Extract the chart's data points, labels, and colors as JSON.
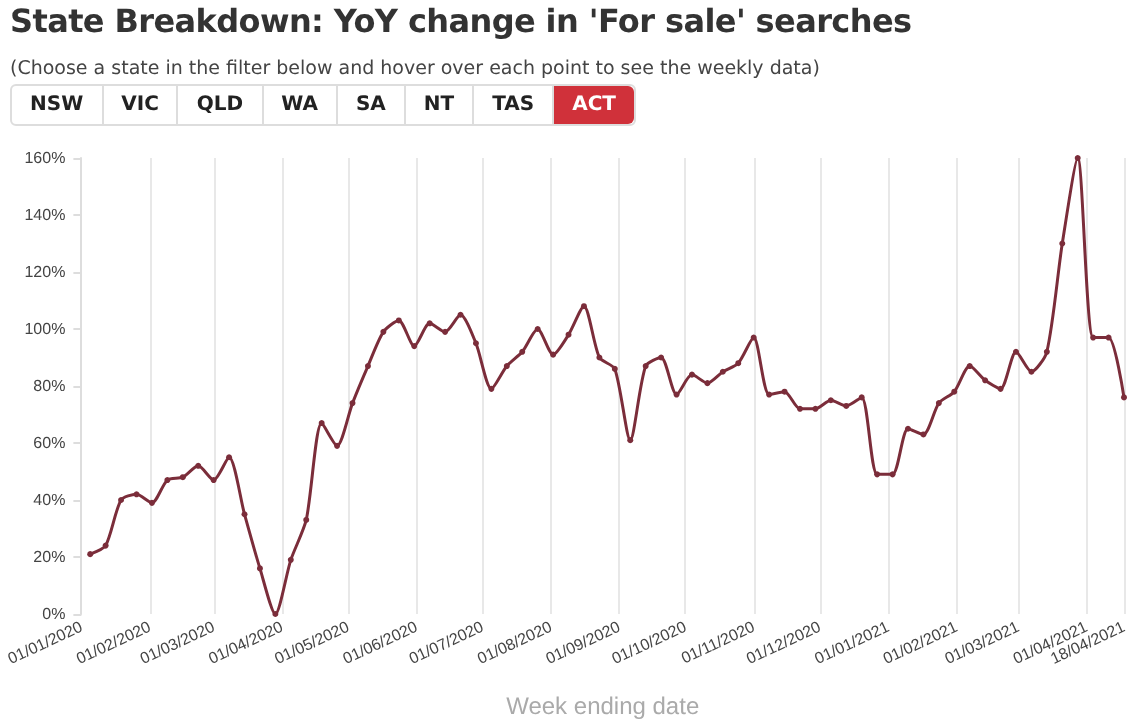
{
  "chart_data": {
    "type": "line",
    "title": "State Breakdown: YoY change in 'For sale' searches",
    "subtitle": "(Choose a state in the filter below and hover over each point to see the weekly data)",
    "annotations": [
      "NSW",
      "VIC",
      "QLD",
      "WA",
      "SA",
      "NT",
      "TAS",
      "ACT"
    ],
    "xlabel": "Week ending date",
    "x": [
      "2020-01-05",
      "2020-01-12",
      "2020-01-19",
      "2020-01-26",
      "2020-02-02",
      "2020-02-09",
      "2020-02-16",
      "2020-02-23",
      "2020-03-01",
      "2020-03-08",
      "2020-03-15",
      "2020-03-22",
      "2020-03-29",
      "2020-04-05",
      "2020-04-12",
      "2020-04-19",
      "2020-04-26",
      "2020-05-03",
      "2020-05-10",
      "2020-05-17",
      "2020-05-24",
      "2020-05-31",
      "2020-06-07",
      "2020-06-14",
      "2020-06-21",
      "2020-06-28",
      "2020-07-05",
      "2020-07-12",
      "2020-07-19",
      "2020-07-26",
      "2020-08-02",
      "2020-08-09",
      "2020-08-16",
      "2020-08-23",
      "2020-08-30",
      "2020-09-06",
      "2020-09-13",
      "2020-09-20",
      "2020-09-27",
      "2020-10-04",
      "2020-10-11",
      "2020-10-18",
      "2020-10-25",
      "2020-11-01",
      "2020-11-08",
      "2020-11-15",
      "2020-11-22",
      "2020-11-29",
      "2020-12-06",
      "2020-12-13",
      "2020-12-20",
      "2020-12-27",
      "2021-01-03",
      "2021-01-10",
      "2021-01-17",
      "2021-01-24",
      "2021-01-31",
      "2021-02-07",
      "2021-02-14",
      "2021-02-21",
      "2021-02-28",
      "2021-03-07",
      "2021-03-14",
      "2021-03-21",
      "2021-03-28",
      "2021-04-04",
      "2021-04-11",
      "2021-04-18"
    ],
    "series": [
      {
        "color": "#7b2d3a",
        "values": [
          21,
          24,
          40,
          42,
          39,
          47,
          48,
          52,
          47,
          55,
          35,
          16,
          0,
          19,
          33,
          67,
          59,
          74,
          87,
          99,
          103,
          94,
          102,
          99,
          105,
          95,
          79,
          87,
          92,
          100,
          91,
          98,
          108,
          90,
          86,
          61,
          87,
          90,
          77,
          84,
          81,
          85,
          88,
          97,
          77,
          78,
          72,
          72,
          75,
          73,
          76,
          49,
          49,
          65,
          63,
          74,
          78,
          87,
          82,
          79,
          92,
          85,
          92,
          130,
          160,
          97,
          97,
          76
        ]
      }
    ],
    "xlim": [
      "2020-01-01",
      "2021-04-18"
    ],
    "xticks": [
      {
        "value": "2020-01-01",
        "label": "01/01/2020"
      },
      {
        "value": "2020-02-01",
        "label": "01/02/2020"
      },
      {
        "value": "2020-03-01",
        "label": "01/03/2020"
      },
      {
        "value": "2020-04-01",
        "label": "01/04/2020"
      },
      {
        "value": "2020-05-01",
        "label": "01/05/2020"
      },
      {
        "value": "2020-06-01",
        "label": "01/06/2020"
      },
      {
        "value": "2020-07-01",
        "label": "01/07/2020"
      },
      {
        "value": "2020-08-01",
        "label": "01/08/2020"
      },
      {
        "value": "2020-09-01",
        "label": "01/09/2020"
      },
      {
        "value": "2020-10-01",
        "label": "01/10/2020"
      },
      {
        "value": "2020-11-01",
        "label": "01/11/2020"
      },
      {
        "value": "2020-12-01",
        "label": "01/12/2020"
      },
      {
        "value": "2021-01-01",
        "label": "01/01/2021"
      },
      {
        "value": "2021-02-01",
        "label": "01/02/2021"
      },
      {
        "value": "2021-03-01",
        "label": "01/03/2021"
      },
      {
        "value": "2021-04-01",
        "label": "01/04/2021"
      },
      {
        "value": "2021-04-18",
        "label": "18/04/2021"
      }
    ],
    "ylim": [
      0,
      160
    ],
    "yticks": [
      {
        "value": 0,
        "label": "0%"
      },
      {
        "value": 20,
        "label": "20%"
      },
      {
        "value": 40,
        "label": "40%"
      },
      {
        "value": 60,
        "label": "60%"
      },
      {
        "value": 80,
        "label": "80%"
      },
      {
        "value": 100,
        "label": "100%"
      },
      {
        "value": 120,
        "label": "120%"
      },
      {
        "value": 140,
        "label": "140%"
      },
      {
        "value": 160,
        "label": "160%"
      }
    ],
    "grid": "x",
    "marker": "circle",
    "line_style": "solid"
  }
}
